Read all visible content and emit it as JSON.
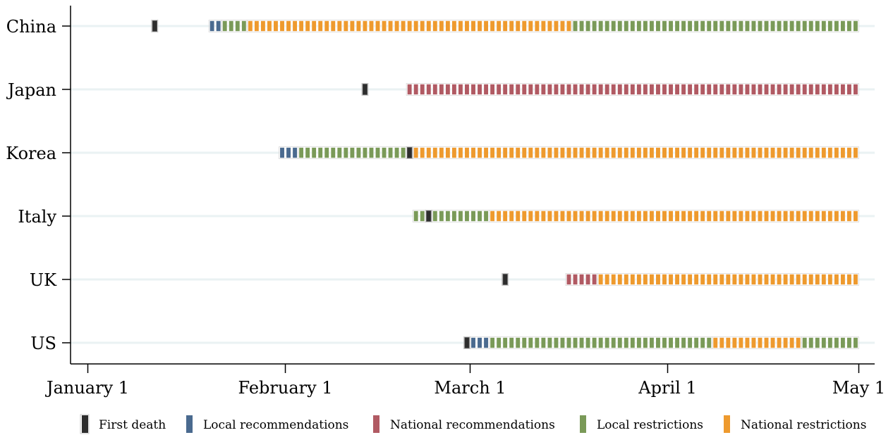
{
  "colors": {
    "first_death": "#2d2d2d",
    "local_recommendations": "#4a6a8f",
    "national_recommendations": "#b15a63",
    "local_restrictions": "#7a9a58",
    "national_restrictions": "#ee9a2e"
  },
  "chart_data": {
    "type": "timeline",
    "title": "",
    "xlabel": "",
    "ylabel": "",
    "xlim": [
      "2020-01-01",
      "2020-05-01"
    ],
    "x_ticks": [
      {
        "date": "2020-01-01",
        "label": "January 1"
      },
      {
        "date": "2020-02-01",
        "label": "February 1"
      },
      {
        "date": "2020-03-01",
        "label": "March 1"
      },
      {
        "date": "2020-04-01",
        "label": "April 1"
      },
      {
        "date": "2020-05-01",
        "label": "May 1"
      }
    ],
    "grid": true,
    "legend_position": "bottom",
    "legend": [
      {
        "key": "first_death",
        "label": "First death"
      },
      {
        "key": "local_recommendations",
        "label": "Local recommendations"
      },
      {
        "key": "national_recommendations",
        "label": "National recommendations"
      },
      {
        "key": "local_restrictions",
        "label": "Local restrictions"
      },
      {
        "key": "national_restrictions",
        "label": "National restrictions"
      }
    ],
    "countries": [
      {
        "name": "China",
        "first_death": "2020-01-11",
        "periods": [
          {
            "type": "local_recommendations",
            "start": "2020-01-20",
            "end": "2020-01-21"
          },
          {
            "type": "local_restrictions",
            "start": "2020-01-22",
            "end": "2020-01-25"
          },
          {
            "type": "national_restrictions",
            "start": "2020-01-26",
            "end": "2020-03-16"
          },
          {
            "type": "local_restrictions",
            "start": "2020-03-17",
            "end": "2020-04-30"
          }
        ]
      },
      {
        "name": "Japan",
        "first_death": "2020-02-13",
        "periods": [
          {
            "type": "national_recommendations",
            "start": "2020-02-20",
            "end": "2020-04-30"
          }
        ]
      },
      {
        "name": "Korea",
        "first_death": "2020-02-20",
        "periods": [
          {
            "type": "local_recommendations",
            "start": "2020-01-31",
            "end": "2020-02-02"
          },
          {
            "type": "local_restrictions",
            "start": "2020-02-03",
            "end": "2020-02-20"
          },
          {
            "type": "national_restrictions",
            "start": "2020-02-21",
            "end": "2020-04-30"
          }
        ]
      },
      {
        "name": "Italy",
        "first_death": "2020-02-23",
        "periods": [
          {
            "type": "local_restrictions",
            "start": "2020-02-21",
            "end": "2020-03-03"
          },
          {
            "type": "national_restrictions",
            "start": "2020-03-04",
            "end": "2020-04-30"
          }
        ]
      },
      {
        "name": "UK",
        "first_death": "2020-03-06",
        "periods": [
          {
            "type": "national_recommendations",
            "start": "2020-03-16",
            "end": "2020-03-20"
          },
          {
            "type": "national_restrictions",
            "start": "2020-03-21",
            "end": "2020-04-30"
          }
        ]
      },
      {
        "name": "US",
        "first_death": "2020-02-29",
        "periods": [
          {
            "type": "local_recommendations",
            "start": "2020-03-01",
            "end": "2020-03-03"
          },
          {
            "type": "local_restrictions",
            "start": "2020-03-04",
            "end": "2020-04-07"
          },
          {
            "type": "national_restrictions",
            "start": "2020-04-08",
            "end": "2020-04-21"
          },
          {
            "type": "local_restrictions",
            "start": "2020-04-22",
            "end": "2020-04-30"
          }
        ]
      }
    ]
  }
}
